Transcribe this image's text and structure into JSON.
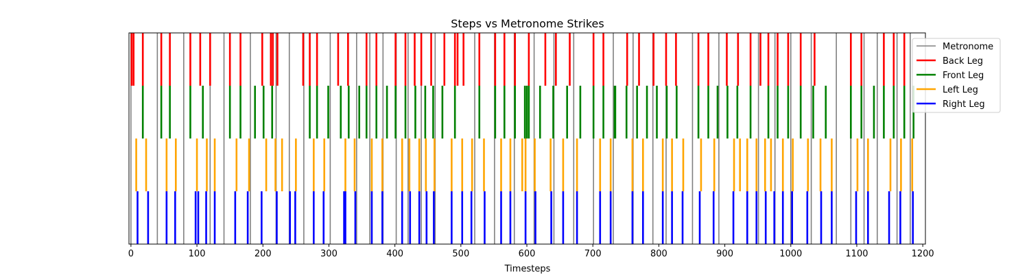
{
  "chart_data": {
    "type": "line",
    "title": "Steps vs Metronome Strikes",
    "xlabel": "Timesteps",
    "ylabel": "",
    "xlim": [
      -3,
      1204
    ],
    "ylim": [
      0,
      4
    ],
    "xticks": [
      0,
      100,
      200,
      300,
      400,
      500,
      600,
      700,
      800,
      900,
      1000,
      1100,
      1200
    ],
    "grid": false,
    "legend_position": "upper-right",
    "series": [
      {
        "name": "Metronome",
        "color": "#808080",
        "band": [
          0,
          4
        ],
        "x": [
          0,
          40,
          80,
          120,
          141,
          181,
          220,
          240,
          262,
          302,
          342,
          362,
          382,
          402,
          420,
          440,
          461,
          521,
          551,
          581,
          611,
          641,
          671,
          701,
          731,
          761,
          791,
          811,
          851,
          891,
          951,
          976,
          1000,
          1031,
          1069,
          1091,
          1111,
          1131,
          1161,
          1181
        ]
      },
      {
        "name": "Back Leg",
        "color": "#ff0000",
        "band": [
          3,
          4
        ],
        "x": [
          1,
          4,
          18,
          46,
          59,
          90,
          105,
          120,
          150,
          166,
          199,
          212,
          215,
          222,
          261,
          271,
          282,
          314,
          329,
          357,
          372,
          401,
          416,
          430,
          440,
          455,
          475,
          491,
          495,
          504,
          528,
          552,
          566,
          582,
          603,
          628,
          644,
          665,
          701,
          716,
          752,
          770,
          792,
          811,
          826,
          860,
          875,
          903,
          920,
          939,
          954,
          966,
          980,
          996,
          1015,
          1036,
          1091,
          1107,
          1141,
          1156,
          1172
        ]
      },
      {
        "name": "Front Leg",
        "color": "#008000",
        "band": [
          2,
          3
        ],
        "x": [
          18,
          46,
          59,
          90,
          109,
          150,
          166,
          188,
          201,
          214,
          271,
          282,
          299,
          318,
          330,
          346,
          357,
          372,
          388,
          401,
          416,
          431,
          446,
          458,
          472,
          491,
          528,
          552,
          566,
          582,
          597,
          600,
          603,
          620,
          640,
          661,
          681,
          701,
          716,
          733,
          734,
          751,
          767,
          782,
          797,
          812,
          827,
          860,
          875,
          889,
          904,
          919,
          939,
          966,
          980,
          996,
          1015,
          1034,
          1053,
          1091,
          1107,
          1126,
          1141,
          1156,
          1172,
          1186
        ]
      },
      {
        "name": "Left Leg",
        "color": "#ffa500",
        "band": [
          1,
          2
        ],
        "x": [
          8,
          23,
          54,
          68,
          100,
          115,
          127,
          160,
          179,
          205,
          219,
          229,
          250,
          277,
          293,
          325,
          339,
          365,
          381,
          411,
          422,
          437,
          447,
          460,
          486,
          502,
          517,
          535,
          561,
          575,
          593,
          598,
          612,
          636,
          655,
          676,
          711,
          727,
          760,
          776,
          806,
          820,
          837,
          864,
          884,
          914,
          923,
          934,
          948,
          961,
          970,
          988,
          1003,
          1026,
          1045,
          1062,
          1101,
          1117,
          1151,
          1167,
          1184
        ]
      },
      {
        "name": "Right Leg",
        "color": "#0000ff",
        "band": [
          0,
          1
        ],
        "x": [
          10,
          26,
          54,
          67,
          98,
          102,
          114,
          127,
          158,
          177,
          198,
          221,
          241,
          249,
          277,
          292,
          323,
          325,
          340,
          365,
          381,
          411,
          423,
          437,
          448,
          459,
          486,
          502,
          516,
          536,
          561,
          575,
          598,
          613,
          637,
          655,
          676,
          711,
          727,
          760,
          776,
          806,
          820,
          836,
          862,
          883,
          913,
          934,
          948,
          962,
          975,
          988,
          1002,
          1025,
          1046,
          1062,
          1099,
          1117,
          1149,
          1166,
          1185
        ]
      }
    ]
  }
}
